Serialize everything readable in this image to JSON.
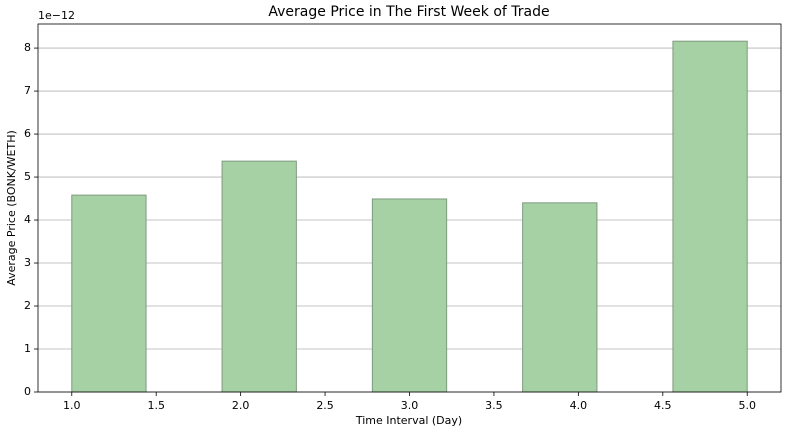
{
  "chart_data": {
    "type": "bar",
    "title": "Average Price in The First Week of Trade",
    "xlabel": "Time Interval (Day)",
    "ylabel": "Average Price (BONK/WETH)",
    "y_offset_text": "1e−12",
    "x": [
      1.22,
      2.11,
      3.0,
      3.89,
      4.78
    ],
    "values": [
      4.58,
      5.37,
      4.49,
      4.4,
      8.16
    ],
    "bar_width": 0.44,
    "color": "#a5d1a5",
    "edgecolor": "#7f9a7f",
    "xlim": [
      0.8,
      5.2
    ],
    "xticks": [
      {
        "value": 1,
        "label": "1.0"
      },
      {
        "value": 1.5,
        "label": "1.5"
      },
      {
        "value": 2,
        "label": "2.0"
      },
      {
        "value": 2.5,
        "label": "2.5"
      },
      {
        "value": 3,
        "label": "3.0"
      },
      {
        "value": 3.5,
        "label": "3.5"
      },
      {
        "value": 4,
        "label": "4.0"
      },
      {
        "value": 4.5,
        "label": "4.5"
      },
      {
        "value": 5,
        "label": "5.0"
      }
    ],
    "ylim": [
      0,
      8.56
    ],
    "yticks": [
      0,
      1,
      2,
      3,
      4,
      5,
      6,
      7,
      8
    ],
    "grid": true
  }
}
